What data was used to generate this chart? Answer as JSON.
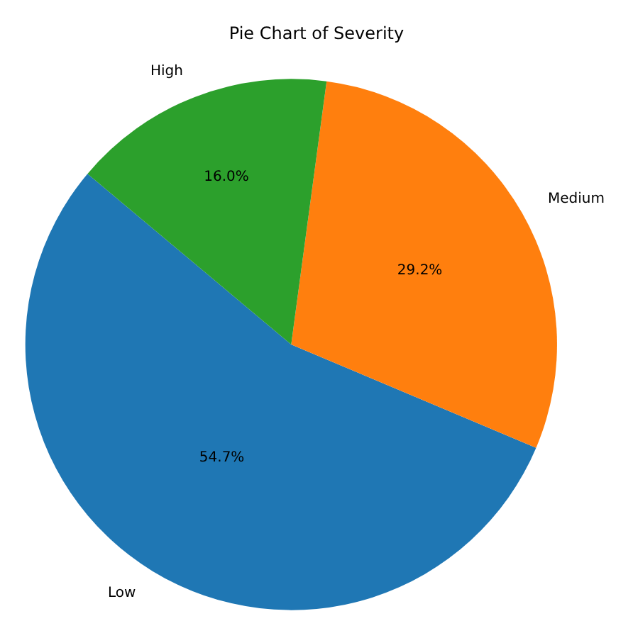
{
  "chart_data": {
    "type": "pie",
    "title": "Pie Chart of Severity",
    "categories": [
      "Low",
      "Medium",
      "High"
    ],
    "values": [
      54.7,
      29.2,
      16.0
    ],
    "colors": [
      "#1f77b4",
      "#ff7f0e",
      "#2ca02c"
    ],
    "value_labels": [
      "54.7%",
      "29.2%",
      "16.0%"
    ],
    "legend": false
  }
}
